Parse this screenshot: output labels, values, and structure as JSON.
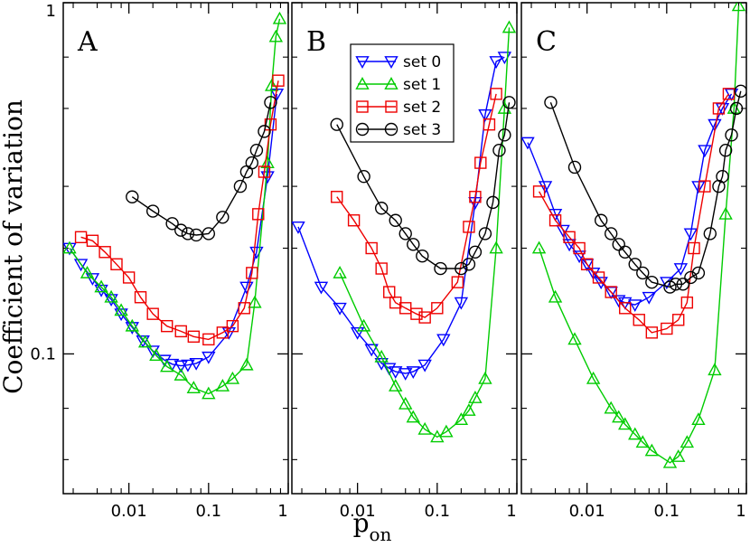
{
  "chart_data": {
    "type": "line",
    "scale": {
      "x": "log",
      "y": "log"
    },
    "xlim": [
      0.0015,
      1.0
    ],
    "ylim": [
      0.04,
      1.0
    ],
    "y_axis_title": "Coefficient of variation",
    "x_axis_title_main": "p",
    "x_axis_title_sub": "on",
    "y_tick_labels": [
      {
        "value": 0.1,
        "text": "0.1"
      },
      {
        "value": 1.0,
        "text": "1"
      }
    ],
    "x_tick_labels": [
      {
        "value": 0.01,
        "text": "0.01"
      },
      {
        "value": 0.1,
        "text": "0.1"
      },
      {
        "value": 1.0,
        "text": "1"
      }
    ],
    "colors": {
      "set 0": "#0000ff",
      "set 1": "#00cc00",
      "set 2": "#ee0000",
      "set 3": "#000000"
    },
    "legend": {
      "location": "panel B, upper-right",
      "entries": [
        "set 0",
        "set 1",
        "set 2",
        "set 3"
      ]
    },
    "panels": [
      {
        "label": "A",
        "series": [
          {
            "name": "set 0",
            "marker": "triangle-down",
            "x": [
              0.0018,
              0.0025,
              0.0035,
              0.0045,
              0.006,
              0.008,
              0.011,
              0.015,
              0.02,
              0.028,
              0.035,
              0.045,
              0.055,
              0.07,
              0.1,
              0.18,
              0.3,
              0.4,
              0.55,
              0.72
            ],
            "y": [
              0.2,
              0.18,
              0.164,
              0.152,
              0.143,
              0.13,
              0.119,
              0.109,
              0.102,
              0.096,
              0.0935,
              0.0925,
              0.093,
              0.094,
              0.098,
              0.115,
              0.155,
              0.195,
              0.32,
              0.55
            ]
          },
          {
            "name": "set 1",
            "marker": "triangle-up",
            "x": [
              0.0018,
              0.003,
              0.0045,
              0.006,
              0.008,
              0.011,
              0.016,
              0.022,
              0.03,
              0.045,
              0.065,
              0.1,
              0.15,
              0.2,
              0.3,
              0.38,
              0.55,
              0.62,
              0.7,
              0.78
            ],
            "y": [
              0.2,
              0.17,
              0.155,
              0.145,
              0.133,
              0.12,
              0.108,
              0.099,
              0.092,
              0.087,
              0.08,
              0.077,
              0.081,
              0.085,
              0.093,
              0.14,
              0.35,
              0.58,
              0.8,
              0.9
            ]
          },
          {
            "name": "set 2",
            "marker": "square",
            "x": [
              0.0025,
              0.0035,
              0.005,
              0.007,
              0.01,
              0.014,
              0.02,
              0.03,
              0.045,
              0.065,
              0.1,
              0.15,
              0.2,
              0.28,
              0.35,
              0.42,
              0.5,
              0.6,
              0.75
            ],
            "y": [
              0.215,
              0.21,
              0.195,
              0.18,
              0.165,
              0.145,
              0.13,
              0.12,
              0.116,
              0.112,
              0.11,
              0.115,
              0.12,
              0.135,
              0.17,
              0.25,
              0.33,
              0.45,
              0.6
            ]
          },
          {
            "name": "set 3",
            "marker": "circle",
            "x": [
              0.011,
              0.02,
              0.035,
              0.045,
              0.055,
              0.07,
              0.1,
              0.15,
              0.25,
              0.3,
              0.35,
              0.4,
              0.5,
              0.6
            ],
            "y": [
              0.28,
              0.255,
              0.235,
              0.225,
              0.22,
              0.218,
              0.22,
              0.245,
              0.3,
              0.33,
              0.35,
              0.38,
              0.43,
              0.52
            ]
          }
        ]
      },
      {
        "label": "B",
        "series": [
          {
            "name": "set 0",
            "marker": "triangle-down",
            "x": [
              0.0018,
              0.0035,
              0.006,
              0.01,
              0.015,
              0.02,
              0.025,
              0.03,
              0.04,
              0.05,
              0.07,
              0.12,
              0.2,
              0.3,
              0.4,
              0.55,
              0.7
            ],
            "y": [
              0.23,
              0.155,
              0.135,
              0.115,
              0.103,
              0.094,
              0.091,
              0.089,
              0.088,
              0.089,
              0.093,
              0.11,
              0.14,
              0.27,
              0.48,
              0.68,
              0.7
            ]
          },
          {
            "name": "set 1",
            "marker": "triangle-up",
            "x": [
              0.006,
              0.012,
              0.02,
              0.03,
              0.04,
              0.05,
              0.07,
              0.1,
              0.13,
              0.2,
              0.25,
              0.3,
              0.4,
              0.55,
              0.7,
              0.8
            ],
            "y": [
              0.17,
              0.12,
              0.098,
              0.081,
              0.072,
              0.066,
              0.061,
              0.058,
              0.06,
              0.065,
              0.069,
              0.075,
              0.085,
              0.2,
              0.5,
              0.85
            ]
          },
          {
            "name": "set 2",
            "marker": "square",
            "x": [
              0.0055,
              0.009,
              0.015,
              0.02,
              0.025,
              0.03,
              0.04,
              0.055,
              0.07,
              0.1,
              0.18,
              0.25,
              0.3,
              0.35,
              0.45,
              0.55
            ],
            "y": [
              0.28,
              0.24,
              0.2,
              0.175,
              0.15,
              0.14,
              0.135,
              0.13,
              0.127,
              0.135,
              0.16,
              0.23,
              0.28,
              0.35,
              0.45,
              0.55
            ]
          },
          {
            "name": "set 3",
            "marker": "circle",
            "x": [
              0.0055,
              0.012,
              0.02,
              0.03,
              0.04,
              0.05,
              0.065,
              0.11,
              0.2,
              0.25,
              0.3,
              0.4,
              0.5,
              0.6,
              0.7,
              0.8
            ],
            "y": [
              0.45,
              0.32,
              0.26,
              0.24,
              0.22,
              0.205,
              0.19,
              0.175,
              0.175,
              0.18,
              0.195,
              0.22,
              0.27,
              0.38,
              0.42,
              0.52
            ]
          }
        ]
      },
      {
        "label": "C",
        "series": [
          {
            "name": "set 0",
            "marker": "triangle-down",
            "x": [
              0.0018,
              0.003,
              0.004,
              0.005,
              0.006,
              0.008,
              0.01,
              0.012,
              0.015,
              0.02,
              0.025,
              0.03,
              0.04,
              0.06,
              0.1,
              0.15,
              0.2,
              0.25,
              0.3,
              0.4,
              0.5,
              0.65
            ],
            "y": [
              0.4,
              0.3,
              0.25,
              0.225,
              0.205,
              0.19,
              0.18,
              0.17,
              0.16,
              0.15,
              0.142,
              0.14,
              0.138,
              0.145,
              0.16,
              0.175,
              0.22,
              0.3,
              0.38,
              0.45,
              0.5,
              0.55
            ]
          },
          {
            "name": "set 1",
            "marker": "triangle-up",
            "x": [
              0.0025,
              0.004,
              0.007,
              0.012,
              0.02,
              0.025,
              0.03,
              0.04,
              0.05,
              0.065,
              0.11,
              0.14,
              0.18,
              0.25,
              0.4,
              0.55,
              0.7,
              0.8
            ],
            "y": [
              0.2,
              0.145,
              0.11,
              0.085,
              0.07,
              0.066,
              0.063,
              0.059,
              0.056,
              0.053,
              0.049,
              0.051,
              0.056,
              0.065,
              0.09,
              0.25,
              0.5,
              0.98
            ]
          },
          {
            "name": "set 2",
            "marker": "square",
            "x": [
              0.0025,
              0.004,
              0.006,
              0.008,
              0.01,
              0.014,
              0.02,
              0.03,
              0.045,
              0.065,
              0.1,
              0.14,
              0.18,
              0.22,
              0.3,
              0.45,
              0.6
            ],
            "y": [
              0.29,
              0.24,
              0.215,
              0.2,
              0.18,
              0.165,
              0.15,
              0.135,
              0.125,
              0.115,
              0.118,
              0.125,
              0.14,
              0.2,
              0.3,
              0.5,
              0.55
            ]
          },
          {
            "name": "set 3",
            "marker": "circle",
            "x": [
              0.0035,
              0.007,
              0.015,
              0.02,
              0.025,
              0.03,
              0.04,
              0.05,
              0.065,
              0.11,
              0.13,
              0.16,
              0.2,
              0.25,
              0.35,
              0.45,
              0.5,
              0.55,
              0.65,
              0.75,
              0.85
            ],
            "y": [
              0.52,
              0.34,
              0.24,
              0.22,
              0.205,
              0.195,
              0.18,
              0.17,
              0.16,
              0.155,
              0.158,
              0.158,
              0.165,
              0.17,
              0.22,
              0.3,
              0.32,
              0.38,
              0.42,
              0.5,
              0.56
            ]
          }
        ]
      }
    ]
  }
}
